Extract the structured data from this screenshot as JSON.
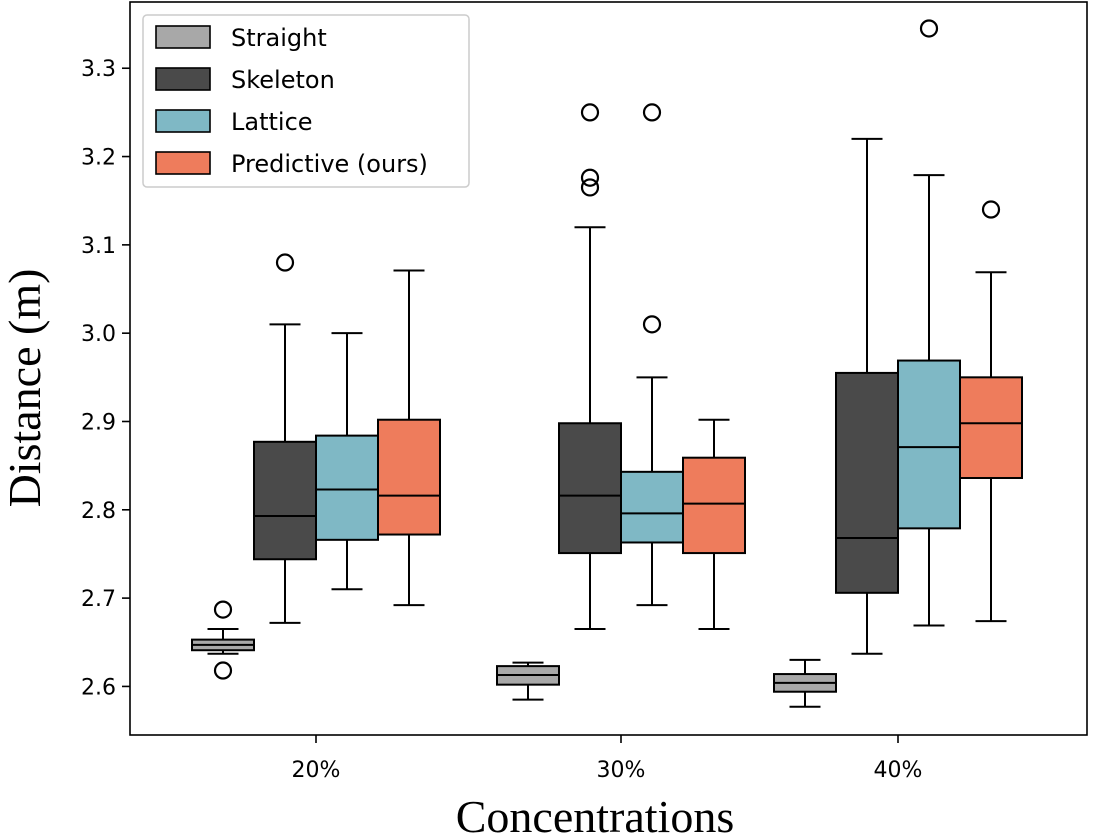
{
  "chart_data": {
    "type": "boxplot",
    "title": "",
    "xlabel": "Concentrations",
    "ylabel": "Distance (m)",
    "ylim": [
      2.545,
      3.375
    ],
    "yticks": [
      2.6,
      2.7,
      2.8,
      2.9,
      3.0,
      3.1,
      3.2,
      3.3
    ],
    "ytick_labels": [
      "2.6",
      "2.7",
      "2.8",
      "2.9",
      "3.0",
      "3.1",
      "3.2",
      "3.3"
    ],
    "categories": [
      "20%",
      "30%",
      "40%"
    ],
    "legend_position": "top-left",
    "series": [
      {
        "name": "Straight",
        "color": "#a8a8a8",
        "boxes": [
          {
            "whisker_low": 2.637,
            "q1": 2.641,
            "median": 2.647,
            "q3": 2.653,
            "whisker_high": 2.665,
            "outliers": [
              2.687,
              2.618
            ]
          },
          {
            "whisker_low": 2.585,
            "q1": 2.602,
            "median": 2.613,
            "q3": 2.623,
            "whisker_high": 2.627,
            "outliers": []
          },
          {
            "whisker_low": 2.577,
            "q1": 2.594,
            "median": 2.604,
            "q3": 2.614,
            "whisker_high": 2.63,
            "outliers": []
          }
        ]
      },
      {
        "name": "Skeleton",
        "color": "#4a4a4a",
        "boxes": [
          {
            "whisker_low": 2.672,
            "q1": 2.744,
            "median": 2.793,
            "q3": 2.877,
            "whisker_high": 3.01,
            "outliers": [
              3.08
            ]
          },
          {
            "whisker_low": 2.665,
            "q1": 2.751,
            "median": 2.816,
            "q3": 2.898,
            "whisker_high": 3.12,
            "outliers": [
              3.25,
              3.176,
              3.165
            ]
          },
          {
            "whisker_low": 2.637,
            "q1": 2.706,
            "median": 2.768,
            "q3": 2.955,
            "whisker_high": 3.22,
            "outliers": []
          }
        ]
      },
      {
        "name": "Lattice",
        "color": "#7fb8c5",
        "boxes": [
          {
            "whisker_low": 2.71,
            "q1": 2.766,
            "median": 2.823,
            "q3": 2.884,
            "whisker_high": 3.0,
            "outliers": []
          },
          {
            "whisker_low": 2.692,
            "q1": 2.763,
            "median": 2.796,
            "q3": 2.843,
            "whisker_high": 2.95,
            "outliers": [
              3.25,
              3.01
            ]
          },
          {
            "whisker_low": 2.669,
            "q1": 2.779,
            "median": 2.871,
            "q3": 2.969,
            "whisker_high": 3.179,
            "outliers": [
              3.345
            ]
          }
        ]
      },
      {
        "name": "Predictive (ours)",
        "color": "#ee7c5c",
        "boxes": [
          {
            "whisker_low": 2.692,
            "q1": 2.772,
            "median": 2.816,
            "q3": 2.902,
            "whisker_high": 3.071,
            "outliers": []
          },
          {
            "whisker_low": 2.665,
            "q1": 2.751,
            "median": 2.807,
            "q3": 2.859,
            "whisker_high": 2.902,
            "outliers": []
          },
          {
            "whisker_low": 2.674,
            "q1": 2.836,
            "median": 2.898,
            "q3": 2.95,
            "whisker_high": 3.069,
            "outliers": [
              3.14
            ]
          }
        ]
      }
    ]
  }
}
